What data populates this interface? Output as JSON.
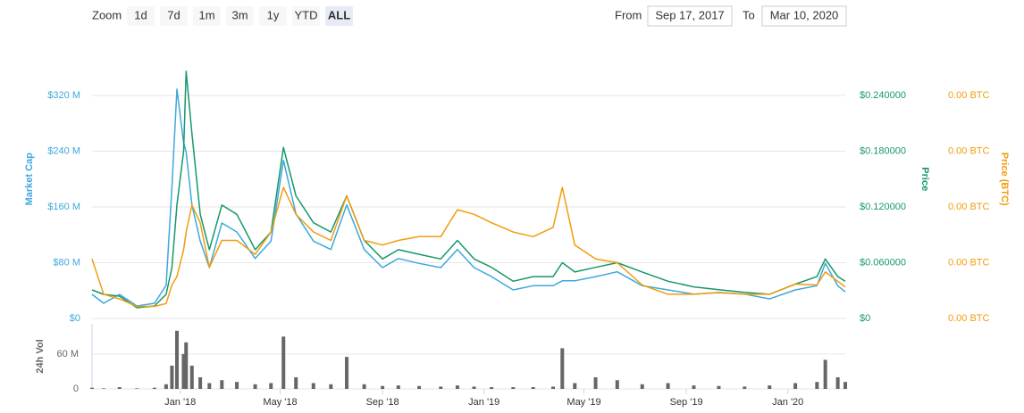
{
  "toolbar": {
    "zoom_label": "Zoom",
    "buttons": [
      {
        "label": "1d"
      },
      {
        "label": "7d"
      },
      {
        "label": "1m"
      },
      {
        "label": "3m"
      },
      {
        "label": "1y"
      },
      {
        "label": "YTD"
      },
      {
        "label": "ALL",
        "active": true
      }
    ],
    "from_label": "From",
    "from": "Sep 17, 2017",
    "to_label": "To",
    "to": "Mar 10, 2020"
  },
  "chart_data": [
    {
      "type": "line",
      "ylabel": "Market Cap",
      "y2label": "Price",
      "y3label": "Price (BTC)",
      "x": [
        "2017-09-17",
        "2017-10-01",
        "2017-10-20",
        "2017-11-10",
        "2017-12-01",
        "2017-12-15",
        "2017-12-22",
        "2017-12-28",
        "2018-01-05",
        "2018-01-08",
        "2018-01-15",
        "2018-01-25",
        "2018-02-05",
        "2018-02-20",
        "2018-03-10",
        "2018-04-01",
        "2018-04-20",
        "2018-05-05",
        "2018-05-20",
        "2018-06-10",
        "2018-07-01",
        "2018-07-20",
        "2018-08-10",
        "2018-09-01",
        "2018-09-20",
        "2018-10-15",
        "2018-11-10",
        "2018-11-30",
        "2018-12-20",
        "2019-01-10",
        "2019-02-05",
        "2019-03-01",
        "2019-03-25",
        "2019-04-05",
        "2019-04-20",
        "2019-05-15",
        "2019-06-10",
        "2019-07-10",
        "2019-08-10",
        "2019-09-10",
        "2019-10-10",
        "2019-11-10",
        "2019-12-10",
        "2020-01-10",
        "2020-02-05",
        "2020-02-15",
        "2020-03-01",
        "2020-03-10"
      ],
      "xlim": [
        "2017-09-17",
        "2020-03-10"
      ],
      "xticks": [
        {
          "value": "2018-01-01",
          "label": "Jan '18"
        },
        {
          "value": "2018-05-01",
          "label": "May '18"
        },
        {
          "value": "2018-09-01",
          "label": "Sep '18"
        },
        {
          "value": "2019-01-01",
          "label": "Jan '19"
        },
        {
          "value": "2019-05-01",
          "label": "May '19"
        },
        {
          "value": "2019-09-01",
          "label": "Sep '19"
        },
        {
          "value": "2020-01-01",
          "label": "Jan '20"
        }
      ],
      "ylim": [
        0,
        400000000
      ],
      "yticks": [
        {
          "value": 0,
          "label": "$0"
        },
        {
          "value": 80000000,
          "label": "$80 M"
        },
        {
          "value": 160000000,
          "label": "$160 M"
        },
        {
          "value": 240000000,
          "label": "$240 M"
        },
        {
          "value": 320000000,
          "label": "$320 M"
        }
      ],
      "y2lim": [
        0,
        0.3
      ],
      "y2ticks": [
        {
          "value": 0,
          "label": "$0"
        },
        {
          "value": 0.06,
          "label": "$0.060000"
        },
        {
          "value": 0.12,
          "label": "$0.120000"
        },
        {
          "value": 0.18,
          "label": "$0.180000"
        },
        {
          "value": 0.24,
          "label": "$0.240000"
        }
      ],
      "y3lim": [
        0,
        3e-05
      ],
      "y3ticks": [
        {
          "value": 0,
          "label": "0.00 BTC"
        },
        {
          "value": 6e-06,
          "label": "0.00 BTC"
        },
        {
          "value": 1.2e-05,
          "label": "0.00 BTC"
        },
        {
          "value": 1.8e-05,
          "label": "0.00 BTC"
        },
        {
          "value": 2.4e-05,
          "label": "0.00 BTC"
        }
      ],
      "grid": true,
      "series": [
        {
          "name": "Market Cap",
          "color": "#3ea8dd",
          "axis": "y",
          "values": [
            34600000,
            21800000,
            34600000,
            17900000,
            21800000,
            47400000,
            188000000,
            329000000,
            252000000,
            239000000,
            163000000,
            111000000,
            73000000,
            137000000,
            124000000,
            86000000,
            111000000,
            227000000,
            150000000,
            111000000,
            99000000,
            163000000,
            99000000,
            73000000,
            86000000,
            79000000,
            73000000,
            99000000,
            73000000,
            60000000,
            41000000,
            47000000,
            47000000,
            54000000,
            54000000,
            60000000,
            67000000,
            47000000,
            41000000,
            35000000,
            37000000,
            35000000,
            28000000,
            41000000,
            47000000,
            79000000,
            47000000,
            38000000
          ]
        },
        {
          "name": "Price",
          "color": "#16986a",
          "axis": "y2",
          "values": [
            0.0307,
            0.0259,
            0.024,
            0.0115,
            0.0134,
            0.0259,
            0.0547,
            0.122,
            0.18,
            0.266,
            0.199,
            0.112,
            0.074,
            0.122,
            0.112,
            0.074,
            0.093,
            0.184,
            0.132,
            0.103,
            0.093,
            0.132,
            0.084,
            0.064,
            0.074,
            0.069,
            0.064,
            0.084,
            0.064,
            0.055,
            0.04,
            0.045,
            0.045,
            0.06,
            0.05,
            0.055,
            0.06,
            0.05,
            0.04,
            0.034,
            0.031,
            0.028,
            0.026,
            0.037,
            0.045,
            0.064,
            0.045,
            0.04
          ]
        },
        {
          "name": "Price (BTC)",
          "color": "#f29c0e",
          "axis": "y3",
          "values": [
            6.4e-06,
            2.6e-06,
            2.1e-06,
            1.3e-06,
            1.3e-06,
            1.6e-06,
            3.6e-06,
            4.5e-06,
            7.4e-06,
            9.3e-06,
            1.22e-05,
            1.03e-05,
            5.5e-06,
            8.4e-06,
            8.4e-06,
            6.9e-06,
            9.3e-06,
            1.41e-05,
            1.12e-05,
            9.3e-06,
            8.4e-06,
            1.32e-05,
            8.4e-06,
            7.9e-06,
            8.4e-06,
            8.8e-06,
            8.8e-06,
            1.17e-05,
            1.12e-05,
            1.03e-05,
            9.3e-06,
            8.8e-06,
            9.8e-06,
            1.41e-05,
            7.9e-06,
            6.4e-06,
            6e-06,
            3.6e-06,
            2.6e-06,
            2.6e-06,
            2.8e-06,
            2.6e-06,
            2.6e-06,
            3.7e-06,
            3.6e-06,
            5e-06,
            4e-06,
            3.4e-06
          ]
        }
      ]
    },
    {
      "type": "bar",
      "ylabel": "24h Vol",
      "color": "#666666",
      "x": [
        "2017-09-17",
        "2017-10-01",
        "2017-10-20",
        "2017-11-10",
        "2017-12-01",
        "2017-12-15",
        "2017-12-22",
        "2017-12-28",
        "2018-01-05",
        "2018-01-08",
        "2018-01-15",
        "2018-01-25",
        "2018-02-05",
        "2018-02-20",
        "2018-03-10",
        "2018-04-01",
        "2018-04-20",
        "2018-05-05",
        "2018-05-20",
        "2018-06-10",
        "2018-07-01",
        "2018-07-20",
        "2018-08-10",
        "2018-09-01",
        "2018-09-20",
        "2018-10-15",
        "2018-11-10",
        "2018-11-30",
        "2018-12-20",
        "2019-01-10",
        "2019-02-05",
        "2019-03-01",
        "2019-03-25",
        "2019-04-05",
        "2019-04-20",
        "2019-05-15",
        "2019-06-10",
        "2019-07-10",
        "2019-08-10",
        "2019-09-10",
        "2019-10-10",
        "2019-11-10",
        "2019-12-10",
        "2020-01-10",
        "2020-02-05",
        "2020-02-15",
        "2020-03-01",
        "2020-03-10"
      ],
      "values": [
        2000000,
        1000000,
        3000000,
        1000000,
        2000000,
        8000000,
        40000000,
        100000000,
        60000000,
        80000000,
        40000000,
        20000000,
        10000000,
        15000000,
        12000000,
        8000000,
        10000000,
        90000000,
        20000000,
        10000000,
        8000000,
        55000000,
        8000000,
        5000000,
        6000000,
        5000000,
        4000000,
        6000000,
        4000000,
        3000000,
        3000000,
        3000000,
        4000000,
        70000000,
        10000000,
        20000000,
        15000000,
        8000000,
        10000000,
        6000000,
        5000000,
        4000000,
        6000000,
        10000000,
        12000000,
        50000000,
        20000000,
        12000000
      ],
      "ylim": [
        0,
        112000000
      ],
      "yticks": [
        0,
        {
          "value": 60000000,
          "label": "60 M"
        }
      ],
      "grid": true
    }
  ]
}
